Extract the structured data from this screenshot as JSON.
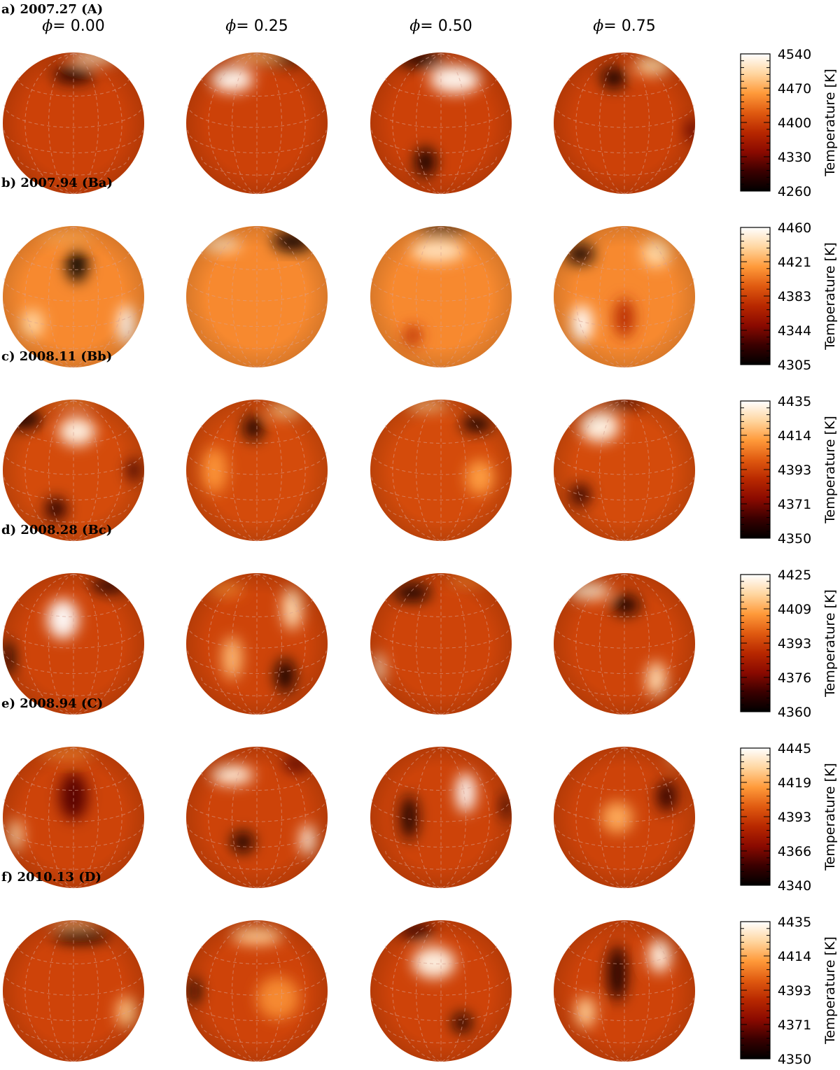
{
  "figure": {
    "phases": [
      "0.00",
      "0.25",
      "0.50",
      "0.75"
    ],
    "phase_symbol": "ϕ",
    "colorbar_title": "Temperature [K]",
    "colormap": [
      "#000000",
      "#3a0000",
      "#8b0a00",
      "#b82800",
      "#e05a10",
      "#ff9a3a",
      "#ffd6a0",
      "#ffffff"
    ],
    "rows": [
      {
        "label": "a) 2007.27 (A)",
        "ticks": [
          "4540",
          "4470",
          "4400",
          "4330",
          "4260"
        ],
        "tmin": 4260,
        "tmax": 4540,
        "base": 4400,
        "spots": [
          [
            [
              0.3,
              -0.94,
              4510,
              0.34,
              0.1
            ],
            [
              0.0,
              -0.68,
              4280,
              0.3,
              0.12
            ]
          ],
          [
            [
              -0.35,
              -0.62,
              4535,
              0.3,
              0.18
            ],
            [
              0.28,
              -0.92,
              4270,
              0.36,
              0.1
            ],
            [
              -0.02,
              -0.95,
              4480,
              0.4,
              0.09
            ]
          ],
          [
            [
              0.2,
              -0.62,
              4535,
              0.36,
              0.2
            ],
            [
              -0.28,
              -0.9,
              4270,
              0.32,
              0.1
            ],
            [
              -0.22,
              0.55,
              4265,
              0.15,
              0.21
            ]
          ],
          [
            [
              -0.15,
              -0.64,
              4270,
              0.18,
              0.15
            ],
            [
              0.4,
              -0.82,
              4500,
              0.26,
              0.14
            ],
            [
              0.96,
              0.1,
              4320,
              0.1,
              0.15
            ]
          ]
        ]
      },
      {
        "label": "b) 2007.94 (Ba)",
        "ticks": [
          "4460",
          "4421",
          "4383",
          "4344",
          "4305"
        ],
        "tmin": 4305,
        "tmax": 4460,
        "base": 4410,
        "spots": [
          [
            [
              0.05,
              -0.45,
              4306,
              0.15,
              0.24
            ],
            [
              -0.58,
              0.38,
              4438,
              0.16,
              0.2
            ],
            [
              0.75,
              0.4,
              4460,
              0.12,
              0.28
            ],
            [
              -0.1,
              -0.85,
              4420,
              0.4,
              0.1
            ]
          ],
          [
            [
              -0.5,
              -0.74,
              4445,
              0.28,
              0.1
            ],
            [
              0.5,
              -0.78,
              4310,
              0.28,
              0.14
            ]
          ],
          [
            [
              -0.05,
              -0.65,
              4445,
              0.38,
              0.16
            ],
            [
              -0.4,
              0.55,
              4370,
              0.12,
              0.14
            ],
            [
              0.02,
              -0.95,
              4310,
              0.36,
              0.07
            ]
          ],
          [
            [
              -0.62,
              -0.6,
              4310,
              0.2,
              0.14
            ],
            [
              0.45,
              -0.62,
              4440,
              0.2,
              0.2
            ],
            [
              -0.6,
              0.38,
              4460,
              0.15,
              0.26
            ],
            [
              0.0,
              0.3,
              4370,
              0.14,
              0.28
            ]
          ]
        ]
      },
      {
        "label": "c) 2008.11 (Bb)",
        "ticks": [
          "4435",
          "4414",
          "4393",
          "4371",
          "4350"
        ],
        "tmin": 4350,
        "tmax": 4435,
        "base": 4395,
        "spots": [
          [
            [
              -0.7,
              -0.72,
              4355,
              0.26,
              0.13
            ],
            [
              0.05,
              -0.55,
              4432,
              0.26,
              0.2
            ],
            [
              -0.25,
              0.55,
              4358,
              0.16,
              0.17
            ],
            [
              0.85,
              0.0,
              4362,
              0.1,
              0.16
            ],
            [
              0.0,
              -0.96,
              4410,
              0.35,
              0.06
            ]
          ],
          [
            [
              -0.05,
              -0.6,
              4352,
              0.14,
              0.18
            ],
            [
              -0.6,
              0.0,
              4410,
              0.18,
              0.32
            ],
            [
              0.4,
              -0.85,
              4420,
              0.25,
              0.1
            ]
          ],
          [
            [
              0.5,
              -0.65,
              4355,
              0.22,
              0.12
            ],
            [
              0.55,
              0.1,
              4412,
              0.2,
              0.25
            ],
            [
              -0.2,
              -0.92,
              4420,
              0.3,
              0.08
            ]
          ],
          [
            [
              -0.35,
              -0.62,
              4432,
              0.28,
              0.22
            ],
            [
              -0.62,
              0.35,
              4358,
              0.14,
              0.16
            ],
            [
              0.0,
              -0.96,
              4360,
              0.3,
              0.06
            ]
          ]
        ]
      },
      {
        "label": "d) 2008.28 (Bc)",
        "ticks": [
          "4425",
          "4409",
          "4393",
          "4376",
          "4360"
        ],
        "tmin": 4360,
        "tmax": 4425,
        "base": 4393,
        "spots": [
          [
            [
              -0.15,
              -0.35,
              4425,
              0.22,
              0.28
            ],
            [
              0.5,
              -0.82,
              4365,
              0.26,
              0.1
            ],
            [
              -0.92,
              0.2,
              4362,
              0.08,
              0.25
            ]
          ],
          [
            [
              0.5,
              -0.5,
              4418,
              0.14,
              0.3
            ],
            [
              -0.35,
              0.2,
              4412,
              0.14,
              0.3
            ],
            [
              0.4,
              0.45,
              4362,
              0.14,
              0.24
            ],
            [
              -0.45,
              -0.78,
              4404,
              0.25,
              0.1
            ]
          ],
          [
            [
              -0.4,
              -0.72,
              4362,
              0.26,
              0.12
            ],
            [
              -0.88,
              0.35,
              4420,
              0.08,
              0.22
            ],
            [
              0.4,
              -0.9,
              4404,
              0.3,
              0.07
            ]
          ],
          [
            [
              -0.5,
              -0.75,
              4420,
              0.3,
              0.12
            ],
            [
              0.02,
              -0.55,
              4362,
              0.2,
              0.14
            ],
            [
              0.45,
              0.5,
              4418,
              0.14,
              0.25
            ]
          ]
        ]
      },
      {
        "label": "e) 2008.94 (C)",
        "ticks": [
          "4445",
          "4419",
          "4393",
          "4366",
          "4340"
        ],
        "tmin": 4340,
        "tmax": 4445,
        "base": 4393,
        "spots": [
          [
            [
              -0.82,
              0.25,
              4432,
              0.1,
              0.22
            ],
            [
              0.0,
              -0.3,
              4360,
              0.2,
              0.34
            ],
            [
              -0.1,
              -0.92,
              4412,
              0.4,
              0.08
            ]
          ],
          [
            [
              -0.35,
              -0.6,
              4440,
              0.3,
              0.14
            ],
            [
              -0.2,
              0.35,
              4342,
              0.16,
              0.15
            ],
            [
              0.72,
              0.32,
              4440,
              0.11,
              0.22
            ],
            [
              0.55,
              -0.75,
              4360,
              0.18,
              0.1
            ]
          ],
          [
            [
              0.35,
              -0.35,
              4445,
              0.14,
              0.28
            ],
            [
              -0.45,
              0.0,
              4345,
              0.12,
              0.32
            ],
            [
              0.92,
              -0.15,
              4350,
              0.07,
              0.2
            ]
          ],
          [
            [
              -0.1,
              0.0,
              4420,
              0.22,
              0.22
            ],
            [
              0.6,
              -0.3,
              4350,
              0.14,
              0.22
            ],
            [
              0.75,
              -0.85,
              4430,
              0.14,
              0.08
            ]
          ]
        ]
      },
      {
        "label": "f) 2010.13 (D)",
        "ticks": [
          "4435",
          "4414",
          "4393",
          "4371",
          "4350"
        ],
        "tmin": 4350,
        "tmax": 4435,
        "base": 4393,
        "spots": [
          [
            [
              0.1,
              -0.78,
              4352,
              0.4,
              0.1
            ],
            [
              0.75,
              0.3,
              4420,
              0.14,
              0.22
            ],
            [
              0.0,
              -0.97,
              4420,
              0.35,
              0.05
            ]
          ],
          [
            [
              -0.88,
              0.0,
              4352,
              0.08,
              0.18
            ],
            [
              0.0,
              -0.78,
              4422,
              0.36,
              0.12
            ],
            [
              0.3,
              0.1,
              4408,
              0.3,
              0.3
            ]
          ],
          [
            [
              -0.1,
              -0.4,
              4432,
              0.3,
              0.22
            ],
            [
              0.3,
              0.45,
              4352,
              0.14,
              0.14
            ],
            [
              -0.35,
              -0.85,
              4360,
              0.25,
              0.1
            ]
          ],
          [
            [
              -0.1,
              -0.25,
              4356,
              0.14,
              0.4
            ],
            [
              0.5,
              -0.5,
              4432,
              0.16,
              0.24
            ],
            [
              -0.55,
              0.3,
              4422,
              0.14,
              0.22
            ]
          ]
        ]
      }
    ]
  }
}
